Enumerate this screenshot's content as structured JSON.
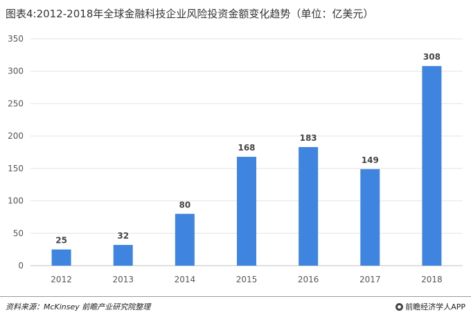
{
  "title": "图表4:2012-2018年全球金融科技企业风险投资金额变化趋势（单位：亿美元）",
  "source": "资料来源：McKinsey 前瞻产业研究院整理",
  "brand": "前瞻经济学人APP",
  "bar_color": "#3f85e0",
  "chart_data": {
    "type": "bar",
    "categories": [
      "2012",
      "2013",
      "2014",
      "2015",
      "2016",
      "2017",
      "2018"
    ],
    "values": [
      25,
      32,
      80,
      168,
      183,
      149,
      308
    ],
    "title": "图表4:2012-2018年全球金融科技企业风险投资金额变化趋势（单位：亿美元）",
    "xlabel": "",
    "ylabel": "",
    "ylim": [
      0,
      350
    ],
    "yticks": [
      0,
      50,
      100,
      150,
      200,
      250,
      300,
      350
    ],
    "grid": true,
    "legend": "none"
  }
}
